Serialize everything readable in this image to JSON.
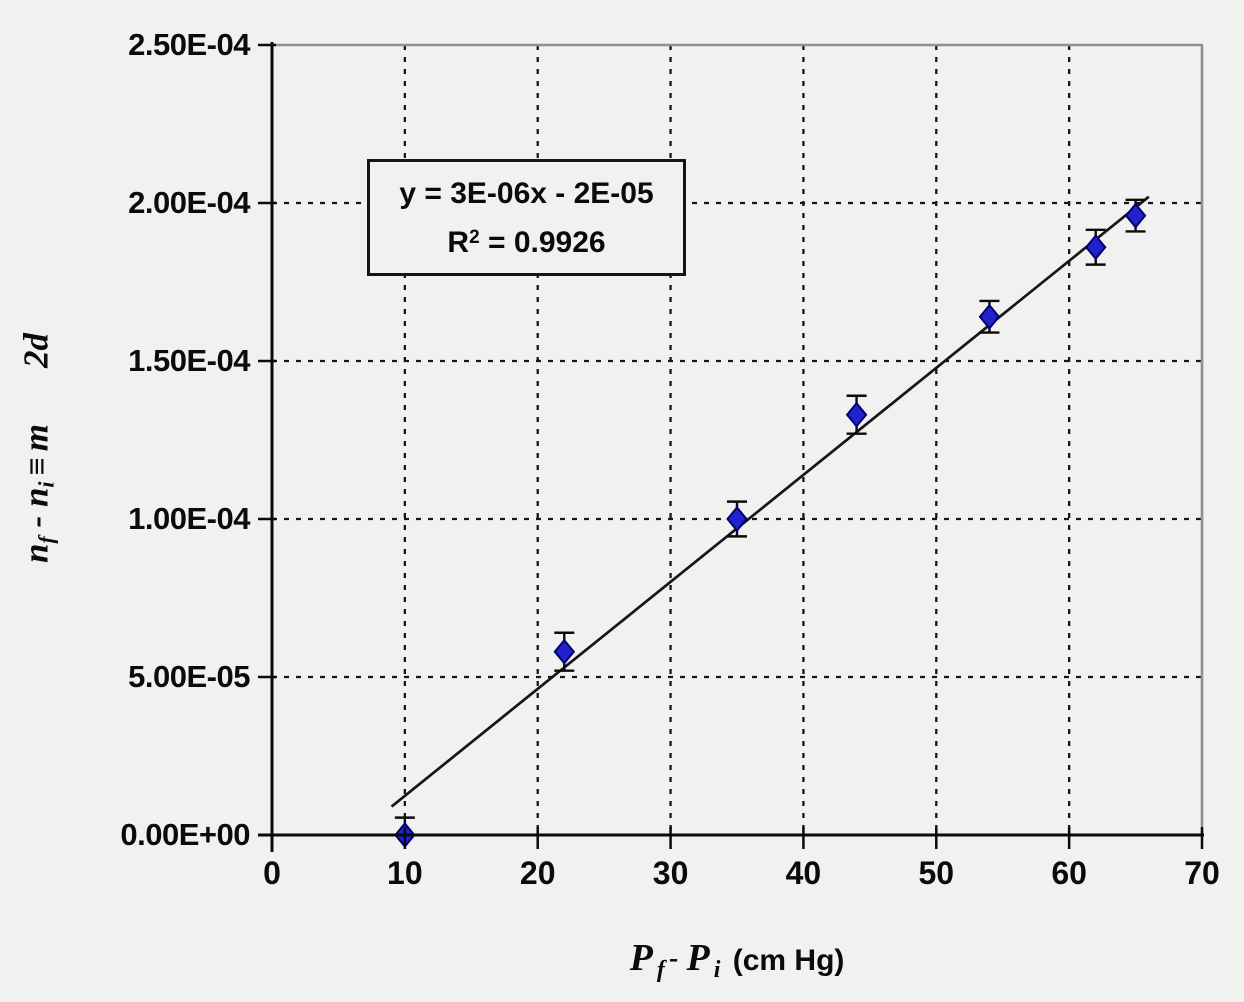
{
  "colors": {
    "background": "#f1f1ef",
    "marker_fill": "#2222cc",
    "marker_stroke": "#00006e",
    "axis": "#0b0b0b",
    "plot_border_gray": "#8f8f8f",
    "gridline": "#161616",
    "trendline": "#161616",
    "text": "#0b0b0b"
  },
  "chart_data": {
    "type": "scatter",
    "title": "",
    "xlabel": "Pf - Pi (cm Hg)",
    "ylabel": "nf - ni ≡ m   2d",
    "xlabel_parts": {
      "P1": "P",
      "sub1": "f",
      "minus": "-",
      "P2": "P",
      "sub2": "i",
      "units": "(cm Hg)"
    },
    "ylabel_parts": {
      "n1": "n",
      "sub1": "f",
      "minus": " - ",
      "n2": "n",
      "sub2": "i",
      "rel": "≡",
      "m": "m",
      "tail": "2d"
    },
    "x_range": [
      0,
      70
    ],
    "y_range": [
      0,
      0.00025
    ],
    "x_ticks": [
      0,
      10,
      20,
      30,
      40,
      50,
      60,
      70
    ],
    "x_tick_labels": [
      "0",
      "10",
      "20",
      "30",
      "40",
      "50",
      "60",
      "70"
    ],
    "y_ticks": [
      0,
      5e-05,
      0.0001,
      0.00015,
      0.0002,
      0.00025
    ],
    "y_tick_labels": [
      "0.00E+00",
      "5.00E-05",
      "1.00E-04",
      "1.50E-04",
      "2.00E-04",
      "2.50E-04"
    ],
    "grid": {
      "style": "dashed",
      "x_gridlines": [
        10,
        20,
        30,
        40,
        50,
        60
      ],
      "y_gridlines": [
        5e-05,
        0.0001,
        0.00015,
        0.0002
      ]
    },
    "legend_position": "none",
    "series": [
      {
        "name": "data-points",
        "marker": "diamond",
        "points": [
          {
            "x": 10,
            "y": 0.0,
            "yerr": 5.5e-06
          },
          {
            "x": 22,
            "y": 5.8e-05,
            "yerr": 6e-06
          },
          {
            "x": 35,
            "y": 0.0001,
            "yerr": 5.5e-06
          },
          {
            "x": 44,
            "y": 0.000133,
            "yerr": 6e-06
          },
          {
            "x": 54,
            "y": 0.000164,
            "yerr": 5e-06
          },
          {
            "x": 62,
            "y": 0.000186,
            "yerr": 5.5e-06
          },
          {
            "x": 65,
            "y": 0.000196,
            "yerr": 5e-06
          }
        ]
      },
      {
        "name": "trendline",
        "type": "line",
        "start": {
          "x": 9.0,
          "y": 9e-06
        },
        "end": {
          "x": 66.0,
          "y": 0.000202
        }
      }
    ],
    "annotation": {
      "line1": "y = 3E-06x - 2E-05",
      "line2_base": "R",
      "line2_sup": "2",
      "line2_rest": " = 0.9926"
    }
  }
}
